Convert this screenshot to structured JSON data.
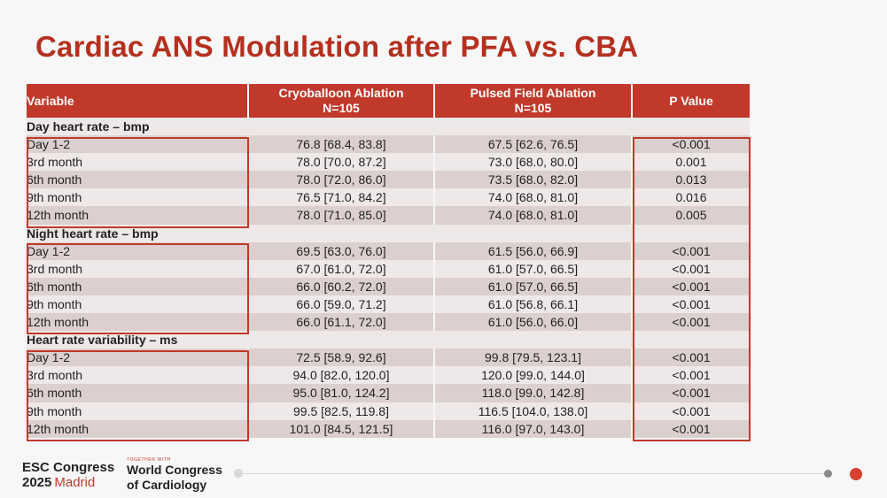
{
  "slide": {
    "title": "Cardiac ANS Modulation after PFA vs. CBA"
  },
  "table": {
    "headers": {
      "variable": "Variable",
      "cba_line1": "Cryoballoon Ablation",
      "cba_line2": "N=105",
      "pfa_line1": "Pulsed Field Ablation",
      "pfa_line2": "N=105",
      "p": "P Value"
    },
    "sections": [
      {
        "title": "Day heart rate – bmp",
        "rows": [
          {
            "label": "Day 1-2",
            "cba": "76.8 [68.4, 83.8]",
            "pfa": "67.5 [62.6, 76.5]",
            "p": "<0.001"
          },
          {
            "label": "3rd month",
            "cba": "78.0 [70.0, 87.2]",
            "pfa": "73.0 [68.0, 80.0]",
            "p": "0.001"
          },
          {
            "label": "6th month",
            "cba": "78.0 [72.0, 86.0]",
            "pfa": "73.5 [68.0, 82.0]",
            "p": "0.013"
          },
          {
            "label": "9th month",
            "cba": "76.5 [71.0, 84.2]",
            "pfa": "74.0 [68.0, 81.0]",
            "p": "0.016"
          },
          {
            "label": "12th month",
            "cba": "78.0 [71.0, 85.0]",
            "pfa": "74.0 [68.0, 81.0]",
            "p": "0.005"
          }
        ]
      },
      {
        "title": "Night heart rate – bmp",
        "rows": [
          {
            "label": "Day 1-2",
            "cba": "69.5 [63.0, 76.0]",
            "pfa": "61.5 [56.0, 66.9]",
            "p": "<0.001"
          },
          {
            "label": "3rd month",
            "cba": "67.0 [61.0, 72.0]",
            "pfa": "61.0 [57.0, 66.5]",
            "p": "<0.001"
          },
          {
            "label": "6th month",
            "cba": "66.0 [60.2, 72.0]",
            "pfa": "61.0 [57.0, 66.5]",
            "p": "<0.001"
          },
          {
            "label": "9th month",
            "cba": "66.0 [59.0, 71.2]",
            "pfa": "61.0 [56.8, 66.1]",
            "p": "<0.001"
          },
          {
            "label": "12th month",
            "cba": "66.0 [61.1, 72.0]",
            "pfa": "61.0 [56.0, 66.0]",
            "p": "<0.001"
          }
        ]
      },
      {
        "title": "Heart rate variability – ms",
        "rows": [
          {
            "label": "Day 1-2",
            "cba": "72.5 [58.9, 92.6]",
            "pfa": "99.8 [79.5, 123.1]",
            "p": "<0.001"
          },
          {
            "label": "3rd month",
            "cba": "94.0 [82.0, 120.0]",
            "pfa": "120.0 [99.0, 144.0]",
            "p": "<0.001"
          },
          {
            "label": "6th month",
            "cba": "95.0 [81.0, 124.2]",
            "pfa": "118.0 [99.0, 142.8]",
            "p": "<0.001"
          },
          {
            "label": "9th month",
            "cba": "99.5 [82.5, 119.8]",
            "pfa": "116.5 [104.0, 138.0]",
            "p": "<0.001"
          },
          {
            "label": "12th month",
            "cba": "101.0 [84.5, 121.5]",
            "pfa": "116.0 [97.0, 143.0]",
            "p": "<0.001"
          }
        ]
      }
    ]
  },
  "footer": {
    "esc_line1": "ESC Congress",
    "esc_year": "2025",
    "esc_city": "Madrid",
    "together_with": "TOGETHER WITH",
    "wcc_line1": "World Congress",
    "wcc_line2": "of Cardiology"
  },
  "colors": {
    "accent": "#c0392b",
    "row_light": "#efe8e8",
    "row_dark": "#dcd0cf"
  }
}
